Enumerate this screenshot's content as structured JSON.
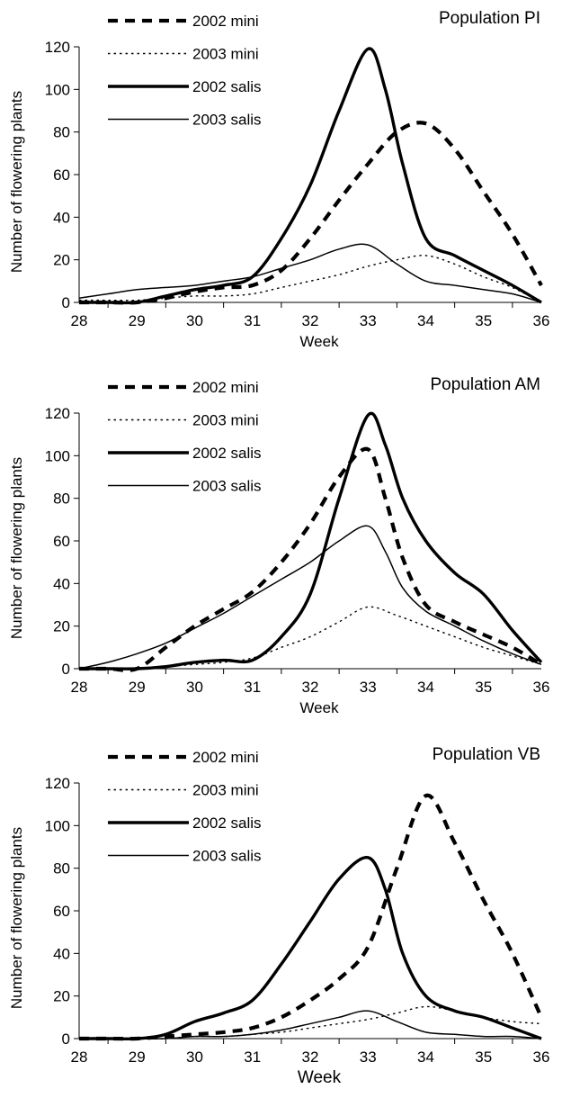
{
  "chart_data": [
    {
      "type": "line",
      "title": "Population PI",
      "xlabel": "Week",
      "ylabel": "Number of flowering plants",
      "xlim": [
        28,
        36
      ],
      "ylim": [
        0,
        120
      ],
      "x_ticks": [
        28,
        29,
        30,
        31,
        32,
        33,
        34,
        35,
        36
      ],
      "y_ticks": [
        0,
        20,
        40,
        60,
        80,
        100,
        120
      ],
      "legend_position": "top-left",
      "grid": false,
      "series": [
        {
          "name": "2002 mini",
          "style": "thick-dashed",
          "x": [
            28,
            28.5,
            29,
            29.5,
            30,
            30.5,
            31,
            31.5,
            32,
            32.5,
            33,
            33.5,
            34,
            34.5,
            35,
            35.5,
            36
          ],
          "y": [
            0,
            0,
            0,
            2,
            5,
            7,
            8,
            15,
            30,
            48,
            65,
            80,
            84,
            72,
            52,
            32,
            8
          ]
        },
        {
          "name": "2003 mini",
          "style": "thin-dotted",
          "x": [
            28,
            28.5,
            29,
            29.5,
            30,
            30.5,
            31,
            31.5,
            32,
            32.5,
            33,
            33.5,
            34,
            34.5,
            35,
            35.5,
            36
          ],
          "y": [
            1,
            1,
            1,
            2,
            3,
            3,
            4,
            7,
            10,
            13,
            17,
            20,
            22,
            18,
            12,
            7,
            0
          ]
        },
        {
          "name": "2002 salis",
          "style": "thick-solid",
          "x": [
            28,
            28.5,
            29,
            29.5,
            30,
            30.5,
            31,
            31.5,
            32,
            32.5,
            33,
            33.3,
            33.6,
            34,
            34.5,
            35,
            35.5,
            36
          ],
          "y": [
            0,
            0,
            0,
            3,
            6,
            8,
            12,
            30,
            55,
            90,
            119,
            100,
            65,
            30,
            22,
            15,
            8,
            0
          ]
        },
        {
          "name": "2003 salis",
          "style": "thin-solid",
          "x": [
            28,
            28.5,
            29,
            29.5,
            30,
            30.5,
            31,
            31.5,
            32,
            32.5,
            33,
            33.5,
            34,
            34.5,
            35,
            35.5,
            36
          ],
          "y": [
            2,
            4,
            6,
            7,
            8,
            10,
            12,
            16,
            20,
            25,
            27,
            18,
            10,
            8,
            6,
            4,
            0
          ]
        }
      ]
    },
    {
      "type": "line",
      "title": "Population AM",
      "xlabel": "Week",
      "ylabel": "Number of flowering plants",
      "xlim": [
        28,
        36
      ],
      "ylim": [
        0,
        120
      ],
      "x_ticks": [
        28,
        29,
        30,
        31,
        32,
        33,
        34,
        35,
        36
      ],
      "y_ticks": [
        0,
        20,
        40,
        60,
        80,
        100,
        120
      ],
      "legend_position": "top-left",
      "grid": false,
      "series": [
        {
          "name": "2002 mini",
          "style": "thick-dashed",
          "x": [
            28,
            28.5,
            29,
            29.5,
            30,
            30.5,
            31,
            31.5,
            32,
            32.5,
            33,
            33.3,
            33.6,
            34,
            34.5,
            35,
            35.5,
            36
          ],
          "y": [
            0,
            0,
            0,
            10,
            20,
            28,
            36,
            50,
            68,
            90,
            103,
            80,
            52,
            30,
            22,
            16,
            10,
            2
          ]
        },
        {
          "name": "2003 mini",
          "style": "thin-dotted",
          "x": [
            28,
            28.5,
            29,
            29.5,
            30,
            30.5,
            31,
            31.5,
            32,
            32.5,
            33,
            33.5,
            34,
            34.5,
            35,
            35.5,
            36
          ],
          "y": [
            0,
            0,
            0,
            1,
            2,
            3,
            5,
            10,
            15,
            22,
            29,
            25,
            20,
            15,
            10,
            6,
            2
          ]
        },
        {
          "name": "2002 salis",
          "style": "thick-solid",
          "x": [
            28,
            28.5,
            29,
            29.5,
            30,
            30.5,
            31,
            31.5,
            32,
            32.5,
            33,
            33.3,
            33.6,
            34,
            34.5,
            35,
            35.5,
            36
          ],
          "y": [
            0,
            0,
            0,
            1,
            3,
            4,
            4,
            15,
            35,
            80,
            119,
            105,
            80,
            60,
            45,
            35,
            18,
            3
          ]
        },
        {
          "name": "2003 salis",
          "style": "thin-solid",
          "x": [
            28,
            28.5,
            29,
            29.5,
            30,
            30.5,
            31,
            31.5,
            32,
            32.5,
            33,
            33.3,
            33.6,
            34,
            34.5,
            35,
            35.5,
            36
          ],
          "y": [
            0,
            3,
            7,
            12,
            19,
            26,
            34,
            42,
            50,
            60,
            67,
            55,
            38,
            27,
            20,
            13,
            7,
            2
          ]
        }
      ]
    },
    {
      "type": "line",
      "title": "Population VB",
      "xlabel": "Week",
      "ylabel": "Number of flowering plants",
      "xlim": [
        28,
        36
      ],
      "ylim": [
        0,
        120
      ],
      "x_ticks": [
        28,
        29,
        30,
        31,
        32,
        33,
        34,
        35,
        36
      ],
      "y_ticks": [
        0,
        20,
        40,
        60,
        80,
        100,
        120
      ],
      "legend_position": "top-left",
      "grid": false,
      "series": [
        {
          "name": "2002 mini",
          "style": "thick-dashed",
          "x": [
            28,
            28.5,
            29,
            29.5,
            30,
            30.5,
            31,
            31.5,
            32,
            32.5,
            33,
            33.5,
            34,
            34.5,
            35,
            35.5,
            36
          ],
          "y": [
            0,
            0,
            0,
            1,
            2,
            3,
            5,
            10,
            18,
            28,
            43,
            80,
            114,
            92,
            65,
            40,
            10
          ]
        },
        {
          "name": "2003 mini",
          "style": "thin-dotted",
          "x": [
            28,
            28.5,
            29,
            29.5,
            30,
            30.5,
            31,
            31.5,
            32,
            32.5,
            33,
            33.5,
            34,
            34.5,
            35,
            35.5,
            36
          ],
          "y": [
            0,
            0,
            0,
            0,
            1,
            1,
            2,
            3,
            5,
            7,
            9,
            12,
            15,
            13,
            10,
            8,
            7
          ]
        },
        {
          "name": "2002 salis",
          "style": "thick-solid",
          "x": [
            28,
            28.5,
            29,
            29.5,
            30,
            30.5,
            31,
            31.5,
            32,
            32.5,
            33,
            33.3,
            33.6,
            34,
            34.5,
            35,
            35.5,
            36
          ],
          "y": [
            0,
            0,
            0,
            2,
            8,
            12,
            18,
            35,
            55,
            75,
            85,
            70,
            40,
            20,
            13,
            10,
            5,
            0
          ]
        },
        {
          "name": "2003 salis",
          "style": "thin-solid",
          "x": [
            28,
            28.5,
            29,
            29.5,
            30,
            30.5,
            31,
            31.5,
            32,
            32.5,
            33,
            33.5,
            34,
            34.5,
            35,
            35.5,
            36
          ],
          "y": [
            0,
            0,
            0,
            0,
            1,
            1,
            2,
            4,
            7,
            10,
            13,
            8,
            3,
            2,
            1,
            1,
            0
          ]
        }
      ]
    }
  ]
}
